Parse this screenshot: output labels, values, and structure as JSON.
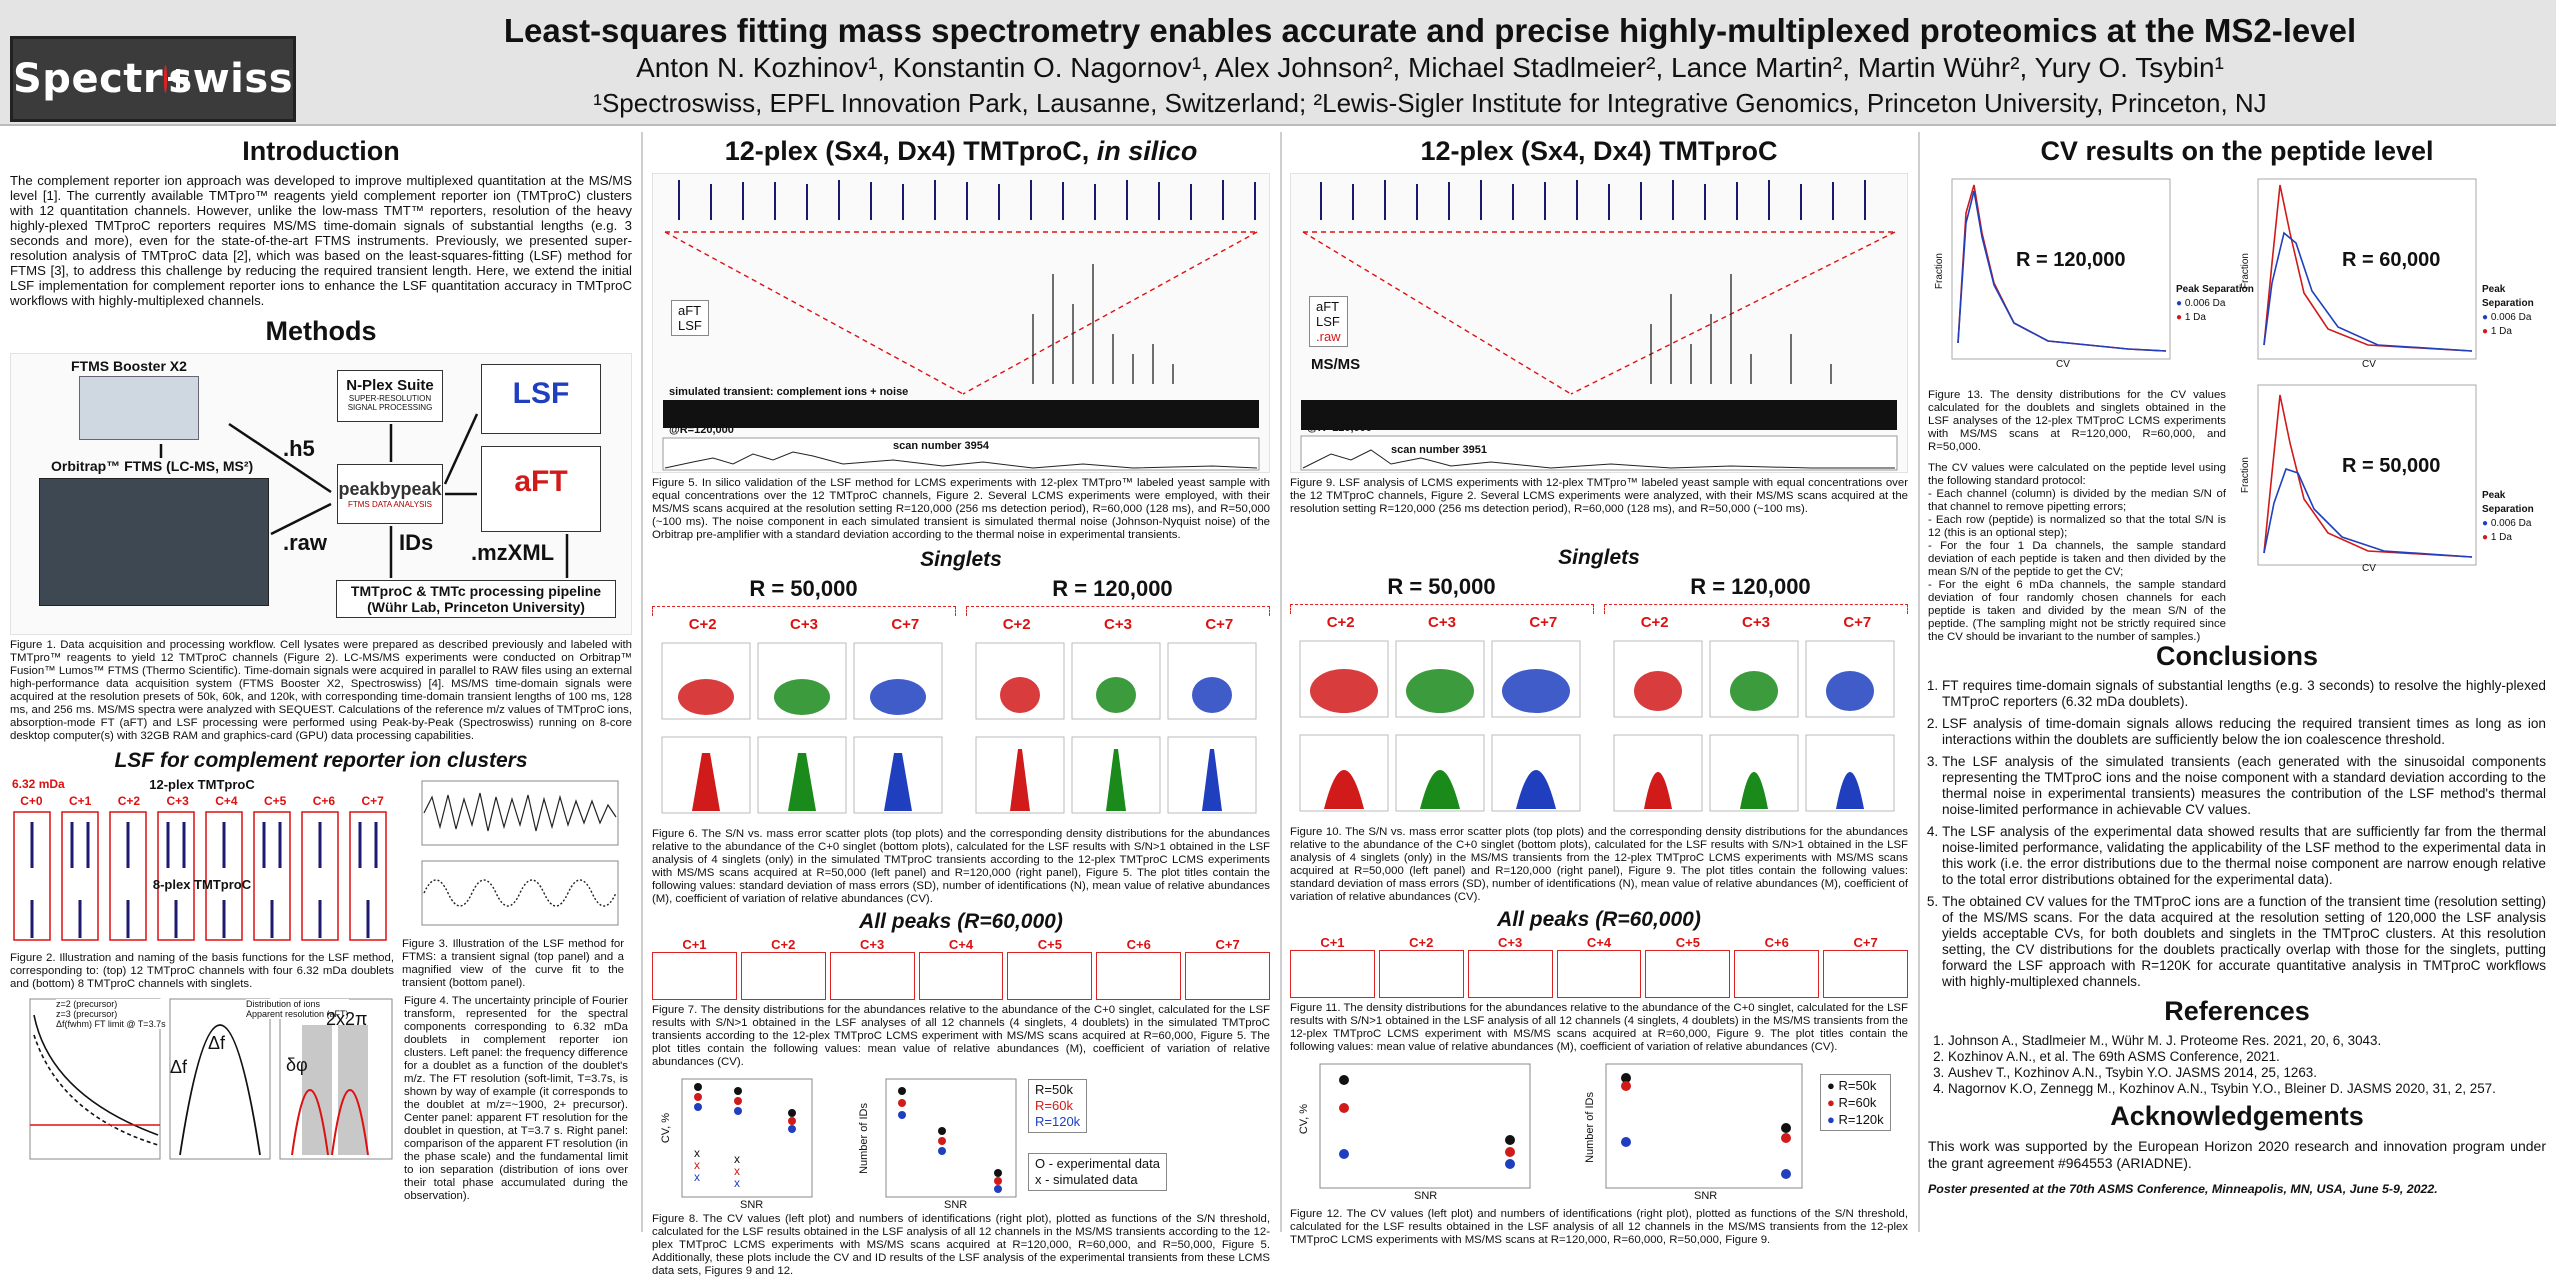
{
  "header": {
    "logo": "Spectroswiss",
    "title": "Least-squares fitting mass spectrometry enables accurate and precise highly-multiplexed proteomics at the MS2-level",
    "authors": "Anton N. Kozhinov¹, Konstantin O. Nagornov¹, Alex Johnson², Michael Stadlmeier², Lance Martin², Martin Wühr², Yury O. Tsybin¹",
    "affiliations": "¹Spectroswiss, EPFL Innovation Park, Lausanne, Switzerland; ²Lewis-Sigler Institute for Integrative Genomics, Princeton University, Princeton, NJ"
  },
  "col1": {
    "intro_title": "Introduction",
    "intro_text": "The complement reporter ion approach was developed to improve multiplexed quantitation at the MS/MS level [1]. The currently available TMTpro™ reagents yield complement reporter ion (TMTproC) clusters with 12 quantitation channels. However, unlike the low-mass TMT™ reporters, resolution of the heavy highly-plexed TMTproC reporters requires MS/MS time-domain signals of substantial lengths (e.g. 3 seconds and more), even for the state-of-the-art FTMS instruments. Previously, we presented super-resolution analysis of TMTproC data [2], which was based on the least-squares-fitting (LSF) method for FTMS [3], to address this challenge by reducing the required transient length. Here, we extend the initial LSF implementation for complement reporter ions to enhance the LSF quantitation accuracy in TMTproC workflows with highly-multiplexed channels.",
    "methods_title": "Methods",
    "ftms_booster": "FTMS Booster X2",
    "orbitrap": "Orbitrap™ FTMS (LC-MS, MS²)",
    "nplex": "N-Plex Suite",
    "nplex_sub": "SUPER-RESOLUTION SIGNAL PROCESSING",
    "h5": ".h5",
    "raw": ".raw",
    "ids": "IDs",
    "mzxml": ".mzXML",
    "peakbypeak": "peakbypeak",
    "peakbypeak_sub": "FTMS DATA ANALYSIS",
    "lsf": "LSF",
    "aft": "aFT",
    "pipeline_line1": "TMTproC & TMTc processing pipeline",
    "pipeline_line2": "(Wühr Lab, Princeton University)",
    "fig1_caption": "Figure 1. Data acquisition and processing workflow. Cell lysates were prepared as described previously and labeled with TMTpro™ reagents to yield 12 TMTproC channels (Figure 2). LC-MS/MS experiments were conducted on Orbitrap™ Fusion™ Lumos™ FTMS (Thermo Scientific). Time-domain signals were acquired in parallel to RAW files using an external high-performance data acquisition system (FTMS Booster X2, Spectroswiss) [4]. MS/MS time-domain signals were acquired at the resolution presets of 50k, 60k, and 120k, with corresponding time-domain transient lengths of 100 ms, 128 ms, and 256 ms. MS/MS spectra were analyzed with SEQUEST. Calculations of the reference m/z values of TMTproC ions, absorption-mode FT (aFT) and LSF processing were performed using Peak-by-Peak (Spectroswiss) running on 8-core desktop computer(s) with 32GB RAM and graphics-card (GPU) data processing capabilities.",
    "lsf_title": "LSF for complement reporter ion clusters",
    "mda_label": "6.32 mDa",
    "twelve_plex": "12-plex TMTproC",
    "eight_plex": "8-plex TMTproC",
    "channels": [
      "C+0",
      "C+1",
      "C+2",
      "C+3",
      "C+4",
      "C+5",
      "C+6",
      "C+7"
    ],
    "fig2_caption": "Figure 2. Illustration and naming of the basis functions for the LSF method, corresponding to: (top) 12 TMTproC channels with four 6.32 mDa doublets and (bottom) 8 TMTproC channels with singlets.",
    "fig3_caption": "Figure 3. Illustration of the LSF method for FTMS: a transient signal (top panel) and a magnified view of the curve fit to the transient (bottom panel).",
    "fig4_caption": "Figure 4. The uncertainty principle of Fourier transform, represented for the spectral components corresponding to 6.32 mDa doublets in complement reporter ion clusters. Left panel: the frequency difference for a doublet as a function of the doublet's m/z. The FT resolution (soft-limit, T=3.7s, is shown by way of example (it corresponds to the doublet at m/z=~1900, 2+ precursor). Center panel: apparent FT resolution for the doublet in question, at T=3.7 s. Right panel: comparison of the apparent FT resolution (in the phase scale) and the fundamental limit to ion separation (distribution of ions over their total phase accumulated during the observation).",
    "fig4_legend": [
      "z=2 (precursor)",
      "z=3 (precursor)",
      "Δf(fwhm) FT limit @ T=3.7s",
      "Distribution of ions",
      "Apparent resolution (aFT)"
    ],
    "delta_fwhm": "Δf",
    "delta_mda": "Δf",
    "two_x_two_pi": "2x2π",
    "delta_phi": "δφ"
  },
  "col2": {
    "title_main": "12-plex (Sx4, Dx4) TMTproC, ",
    "title_italic": "in silico",
    "legend": [
      "aFT",
      "LSF"
    ],
    "transient_label": "simulated transient: complement ions + noise",
    "resolution_label": "@R=120,000",
    "scan_label": "scan number 3954",
    "fig5_caption": "Figure 5. In silico validation of the LSF method for LCMS experiments with 12-plex TMTpro™ labeled yeast sample with equal concentrations over the 12 TMTproC channels, Figure 2. Several LCMS experiments were employed, with their MS/MS scans acquired at the resolution setting R=120,000 (256 ms detection period), R=60,000 (128 ms), and R=50,000 (~100 ms). The noise component in each simulated transient is simulated thermal noise (Johnson-Nyquist noise) of the Orbitrap pre-amplifier with a standard deviation according to the thermal noise in experimental transients.",
    "singlets": "Singlets",
    "r_left": "R = 50,000",
    "r_right": "R = 120,000",
    "singlet_channels": [
      "C+2",
      "C+3",
      "C+7",
      "C+2",
      "C+3",
      "C+7"
    ],
    "fig6_caption": "Figure 6. The S/N vs. mass error scatter plots (top plots) and the corresponding density distributions for the abundances relative to the abundance of the C+0 singlet (bottom plots), calculated for the LSF results with S/N>1 obtained in the LSF analysis of 4 singlets (only) in the simulated TMTproC transients according to the 12-plex TMTproC LCMS experiments with MS/MS scans acquired at R=50,000 (left panel) and R=120,000 (right panel), Figure 5. The plot titles contain the following values: standard deviation of mass errors (SD), number of identifications (N), mean value of relative abundances (M), coefficient of variation of relative abundances (CV).",
    "all_peaks": "All peaks (R=60,000)",
    "all_channels": [
      "C+1",
      "C+2",
      "C+3",
      "C+4",
      "C+5",
      "C+6",
      "C+7"
    ],
    "fig7_caption": "Figure 7. The density distributions for the abundances relative to the abundance of the C+0 singlet, calculated for the LSF results with S/N>1 obtained in the LSF analyses of all 12 channels (4 singlets, 4 doublets) in the simulated TMTproC transients according to the 12-plex TMTproC LCMS experiment with MS/MS scans acquired at R=60,000, Figure 5. The plot titles contain the following values: mean value of relative abundances (M), coefficient of variation of relative abundances (CV).",
    "fig8_legend": [
      "R=50k",
      "R=60k",
      "R=120k"
    ],
    "fig8_legend2": [
      "O - experimental data",
      "x - simulated data"
    ],
    "fig8_xlabel": "SNR",
    "fig8_ylabel_left": "CV, %",
    "fig8_ylabel_right": "Number of IDs",
    "fig8_caption": "Figure 8. The CV values (left plot) and numbers of identifications (right plot), plotted as functions of the S/N threshold, calculated for the LSF results obtained in the LSF analysis of all 12 channels in the MS/MS transients according to the 12-plex TMTproC LCMS experiments with MS/MS scans acquired at R=120,000, R=60,000, and R=50,000, Figure 5. Additionally, these plots include the CV and ID results of the LSF analysis of the experimental transients from these LCMS data sets, Figures 9 and 12."
  },
  "col3": {
    "title": "12-plex (Sx4, Dx4) TMTproC",
    "legend": [
      "aFT",
      "LSF",
      ".raw"
    ],
    "msms_label": "MS/MS",
    "resolution_label": "@R=120,000",
    "scan_label": "scan number 3951",
    "fig9_caption": "Figure 9. LSF analysis of LCMS experiments with 12-plex TMTpro™ labeled yeast sample with equal concentrations over the 12 TMTproC channels, Figure 2. Several LCMS experiments were analyzed, with their MS/MS scans acquired at the resolution setting R=120,000 (256 ms detection period), R=60,000 (128 ms), and R=50,000 (~100 ms).",
    "singlets": "Singlets",
    "r_left": "R = 50,000",
    "r_right": "R = 120,000",
    "singlet_channels": [
      "C+2",
      "C+3",
      "C+7",
      "C+2",
      "C+3",
      "C+7"
    ],
    "fig10_caption": "Figure 10. The S/N vs. mass error scatter plots (top plots) and the corresponding density distributions for the abundances relative to the abundance of the C+0 singlet (bottom plots), calculated for the LSF results with S/N>1 obtained in the LSF analysis of 4 singlets (only) in the MS/MS transients from the 12-plex TMTproC LCMS experiments with MS/MS scans acquired at R=50,000 (left panel) and R=120,000 (right panel), Figure 9. The plot titles contain the following values: standard deviation of mass errors (SD), number of identifications (N), mean value of relative abundances (M), coefficient of variation of relative abundances (CV).",
    "all_peaks": "All peaks (R=60,000)",
    "all_channels": [
      "C+1",
      "C+2",
      "C+3",
      "C+4",
      "C+5",
      "C+6",
      "C+7"
    ],
    "fig11_caption": "Figure 11. The density distributions for the abundances relative to the abundance of the C+0 singlet, calculated for the LSF results with S/N>1 obtained in the LSF analysis of all 12 channels (4 singlets, 4 doublets) in the MS/MS transients from the 12-plex TMTproC LCMS experiment with MS/MS scans acquired at R=60,000, Figure 9. The plot titles contain the following values: mean value of relative abundances (M), coefficient of variation of relative abundances (CV).",
    "fig12_legend": [
      "R=50k",
      "R=60k",
      "R=120k"
    ],
    "fig12_xlabel": "SNR",
    "fig12_ylabel_left": "CV, %",
    "fig12_ylabel_right": "Number of IDs",
    "fig12_caption": "Figure 12. The CV values (left plot) and numbers of identifications (right plot), plotted as functions of the S/N threshold, calculated for the LSF results obtained in the LSF analysis of all 12 channels in the MS/MS transients from the 12-plex TMTproC LCMS experiments with MS/MS scans at R=120,000, R=60,000, R=50,000, Figure 9."
  },
  "col4": {
    "cv_title": "CV results on the peptide level",
    "r1": "R = 120,000",
    "r2": "R = 60,000",
    "r3": "R = 50,000",
    "peak_sep_title": "Peak Separation",
    "peak_sep_items": [
      "0.006 Da",
      "1 Da"
    ],
    "xlabel": "CV",
    "ylabel": "Fraction",
    "fig13_caption": "Figure 13. The density distributions for the CV values calculated for the doublets and singlets obtained in the LSF analyses of the 12-plex TMTproC LCMS experiments with MS/MS scans at R=120,000, R=60,000, and R=50,000.",
    "protocol_text": "The CV values were calculated on the peptide level using the following standard protocol:",
    "protocol_items": [
      "- Each channel (column) is divided by the median S/N of that channel to remove pipetting errors;",
      "- Each row (peptide) is normalized so that the total S/N is 12 (this is an optional step);",
      "- For the four 1 Da channels, the sample standard deviation of each peptide is taken and then divided by the mean S/N of the peptide to get the CV;",
      "- For the eight 6 mDa channels, the sample standard deviation of four randomly chosen channels for each peptide is taken and divided by the mean S/N of the peptide. (The sampling might not be strictly required since the CV should be invariant to the number of samples.)"
    ],
    "conclusions_title": "Conclusions",
    "conclusions": [
      "FT requires time-domain signals of substantial lengths (e.g. 3 seconds) to resolve the highly-plexed TMTproC reporters (6.32 mDa doublets).",
      "LSF analysis of time-domain signals allows reducing the required transient times as long as ion interactions within the doublets are sufficiently below the ion coalescence threshold.",
      "The LSF analysis of the simulated transients (each generated with the sinusoidal components representing the TMTproC ions and the noise component with a standard deviation according to the thermal noise in experimental transients) measures the contribution of the LSF method's thermal noise-limited performance in achievable CV values.",
      "The LSF analysis of the experimental data showed results that are sufficiently far from the thermal noise-limited performance, validating the applicability of the LSF method to the experimental data in this work (i.e. the error distributions due to the thermal noise component are narrow enough relative to the total error distributions obtained for the experimental data).",
      "The obtained CV values for the TMTproC ions are a function of the transient time (resolution setting) of the MS/MS scans. For the data acquired at the resolution setting of 120,000 the LSF analysis yields acceptable CVs, for both doublets and singlets in the TMTproC clusters. At this resolution setting, the CV distributions for the doublets practically overlap with those for the singlets, putting forward the LSF approach with R=120K for accurate quantitative analysis in TMTproC workflows with highly-multiplexed channels."
    ],
    "references_title": "References",
    "references": [
      "Johnson A., Stadlmeier M., Wühr M. J. Proteome Res. 2021, 20, 6, 3043.",
      "Kozhinov A.N., et al. The 69th ASMS Conference, 2021.",
      "Aushev T., Kozhinov A.N., Tsybin Y.O. JASMS 2014, 25, 1263.",
      "Nagornov K.O, Zennegg M., Kozhinov A.N., Tsybin Y.O., Bleiner D. JASMS 2020, 31, 2, 257."
    ],
    "ack_title": "Acknowledgements",
    "ack_text": "This work was supported by the European Horizon 2020 research and innovation program under the grant agreement #964553 (ARIADNE).",
    "presented": "Poster presented at the 70th ASMS Conference, Minneapolis, MN, USA, June 5-9, 2022."
  },
  "colors": {
    "red": "#d11a1a",
    "blue": "#1f3fbf",
    "green": "#1a8a1a",
    "navy": "#1a1a6e"
  }
}
